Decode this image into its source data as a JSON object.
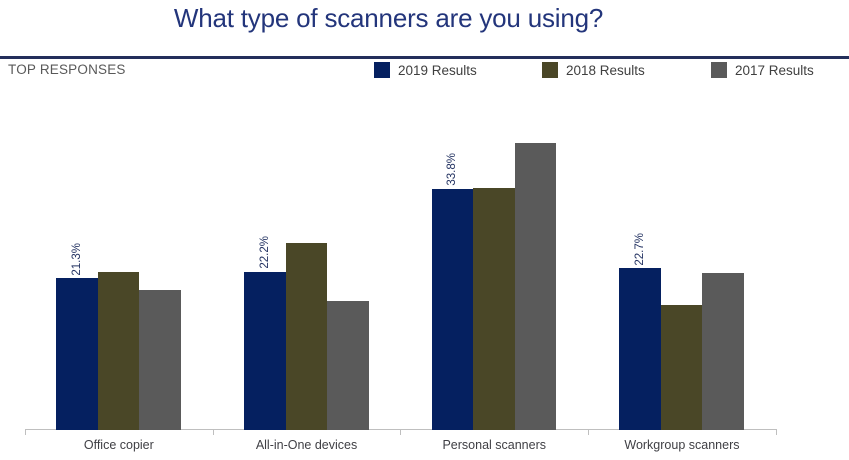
{
  "header": {
    "title": "What type of scanners are you using?",
    "section_label": "TOP RESPONSES"
  },
  "chart_data": {
    "type": "bar",
    "title": "What type of scanners are you using?",
    "categories": [
      "Office copier",
      "All-in-One devices",
      "Personal scanners",
      "Workgroup scanners"
    ],
    "series": [
      {
        "name": "2019 Results",
        "color": "#052060",
        "values": [
          21.3,
          22.2,
          33.8,
          22.7
        ],
        "data_labels": [
          "21.3%",
          "22.2%",
          "33.8%",
          "22.7%"
        ]
      },
      {
        "name": "2018 Results",
        "color": "#4a4727",
        "values": [
          22.2,
          26.2,
          34.0,
          17.5
        ],
        "data_labels": null
      },
      {
        "name": "2017 Results",
        "color": "#5a5a5a",
        "values": [
          19.7,
          18.1,
          40.3,
          22.0
        ],
        "data_labels": null
      }
    ],
    "ylabel": "",
    "xlabel": "",
    "ylim": [
      0,
      45
    ],
    "grid": false,
    "legend_position": "top",
    "value_unit": "%",
    "data_labels_shown_for": "2019 Results only"
  },
  "colors": {
    "title_navy": "#23357b",
    "rule_navy": "#232f5b",
    "axis_gray": "#bfbfbf",
    "label_gray": "#3f3f44",
    "section_gray": "#595959"
  }
}
